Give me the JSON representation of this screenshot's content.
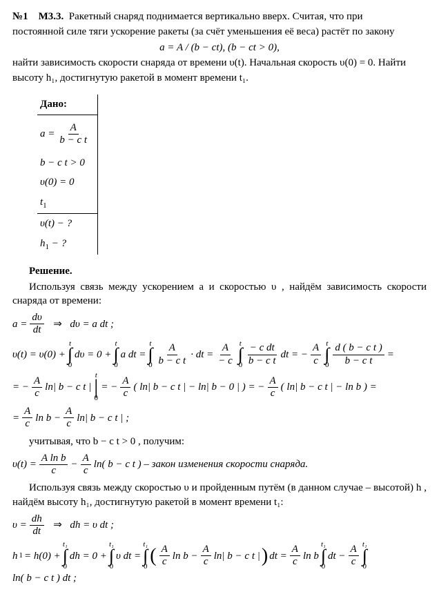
{
  "header": {
    "num": "№1",
    "code": "М3.3.",
    "text_line1": "Ракетный снаряд поднимается вертикально вверх. Считая, что при",
    "text_line2": "постоянной силе тяги ускорение ракеты (за счёт уменьшения её веса) растёт по закону",
    "formula": "a = A / (b − ct),  (b − ct > 0),",
    "text_line3": "найти зависимость скорости снаряда от времени υ(t). Начальная скорость υ(0) = 0. Найти",
    "text_line4": "высоту h₁, достигнутую ракетой в момент времени t₁."
  },
  "dano": {
    "title": "Дано:",
    "r1_num": "A",
    "r1_den": "b − c t",
    "r2": "b − c t > 0",
    "r3": "υ(0) = 0",
    "r4": "t",
    "r4_sub": "1",
    "q1": "υ(t) − ?",
    "q2": "h",
    "q2_sub": "1",
    "q2_rest": " − ?"
  },
  "solution": {
    "heading": "Решение.",
    "p1": "Используя связь между ускорением  a  и скоростью  υ ,  найдём зависимость скорости снаряда от времени:",
    "l1_lhs_num": "dυ",
    "l1_lhs_den": "dt",
    "l1_arrow": "⇒",
    "l1_rhs": "dυ = a dt ;",
    "l2_a": "υ(t) = υ(0) +",
    "l2_b": "dυ = 0 +",
    "l2_c": "a dt =",
    "l2_d": "· dt =",
    "l2_e": "dt = −",
    "l2_f": "=",
    "fr_A_num": "A",
    "fr_A_den": "b − c t",
    "fr_Amc_num": "A",
    "fr_Amc_den": "− c",
    "fr_Ac_num": "A",
    "fr_Ac_den": "c",
    "fr_cdt_num": "− c dt",
    "fr_cdt_den": "b − c t",
    "fr_dbt_num": "d ( b − c t )",
    "fr_dbt_den": "b − c t",
    "l3_a": "= −",
    "l3_b": " ln| b − c t |",
    "l3_c": " = −",
    "l3_d": " ( ln| b − c t | − ln| b − 0 | ) = −",
    "l3_e": " ( ln| b − c t | − ln b ) =",
    "l4_a": "=",
    "l4_b": " ln b −",
    "l4_c": " ln| b − c t | ;",
    "l5_a": "учитывая, что  b − c t > 0 , получим:",
    "l6_a": "υ(t) =",
    "fr_Alnb_num": "A ln b",
    "fr_Alnb_den": "c",
    "l6_b": " − ",
    "l6_c": " ln( b − c t )  – закон изменения скорости снаряда.",
    "p2": "Используя связь между скоростью  υ  и пройденным путём (в данном случае – высотой)  h , найдём высоту h₁, достигнутую ракетой в момент времени t₁:",
    "l7_lhs_num": "dh",
    "l7_lhs_den": "dt",
    "l7_arrow": "⇒",
    "l7_rhs": "dh = υ dt ;",
    "l8_a": "h",
    "l8_a2": " = h(0) +",
    "l8_b": "dh = 0 +",
    "l8_c": "υ dt =",
    "l8_d": " ln b −",
    "l8_e": " ln| b − c t |",
    "l8_f": " dt =",
    "l8_g": " ln b",
    "l8_h": "dt −",
    "l8_i": "ln( b − c t )  dt ;"
  },
  "sym": {
    "int": "∫",
    "t": "t",
    "t1": "t₁",
    "zero": "0",
    "a_eq": "a =",
    "v_eq": "υ =",
    "lparen_big": "(",
    "rparen_big": ")",
    "sub1": "1"
  }
}
